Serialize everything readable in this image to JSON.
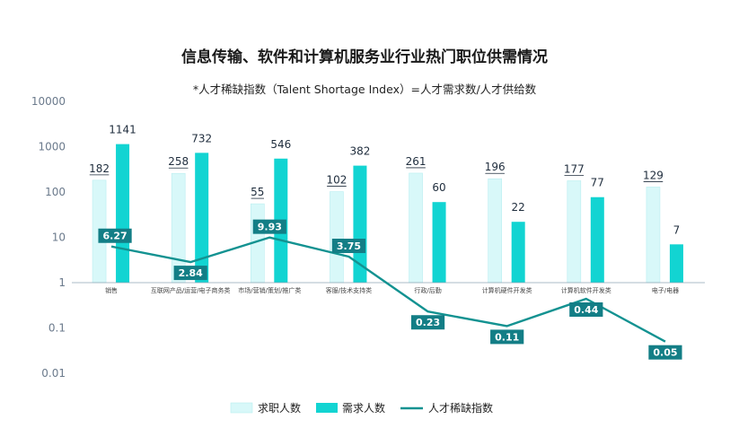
{
  "chart_data": {
    "type": "bar+line",
    "title": "信息传输、软件和计算机服务业行业热门职位供需情况",
    "subtitle": "*人才稀缺指数（Talent Shortage Index）=人才需求数/人才供给数",
    "yscale": "log",
    "ylim": [
      0.01,
      10000
    ],
    "yticks": [
      "10000",
      "1000",
      "100",
      "10",
      "1",
      "0.1",
      "0.01"
    ],
    "categories": [
      "销售",
      "互联网产品/运营/电子商务类",
      "市场/营销/策划/推广类",
      "客服/技术支持类",
      "行政/后勤",
      "计算机硬件开发类",
      "计算机软件开发类",
      "电子/电器"
    ],
    "series": [
      {
        "name": "求职人数",
        "type": "bar",
        "color": "#d8f8f9",
        "values": [
          182,
          258,
          55,
          102,
          261,
          196,
          177,
          129
        ],
        "labels": [
          "182",
          "258",
          "55",
          "102",
          "261",
          "196",
          "177",
          "129"
        ]
      },
      {
        "name": "需求人数",
        "type": "bar",
        "color": "#12d4d2",
        "values": [
          1141,
          732,
          546,
          382,
          60,
          22,
          77,
          7
        ],
        "labels": [
          "1141",
          "732",
          "546",
          "382",
          "60",
          "22",
          "77",
          "7"
        ]
      },
      {
        "name": "人才稀缺指数",
        "type": "line",
        "color": "#139291",
        "values": [
          6.27,
          2.84,
          9.93,
          3.75,
          0.23,
          0.11,
          0.44,
          0.05
        ],
        "labels": [
          "6.27",
          "2.84",
          "9.93",
          "3.75",
          "0.23",
          "0.11",
          "0.44",
          "0.05"
        ]
      }
    ],
    "legend": [
      "求职人数",
      "需求人数",
      "人才稀缺指数"
    ],
    "legend_position": "bottom-center",
    "grid": false
  },
  "colors": {
    "supply": "#d8f8f9",
    "supply_border": "#b9eef0",
    "demand": "#12d4d2",
    "line": "#139291",
    "label_box": "#137e86",
    "axis": "#8fa5b5"
  }
}
